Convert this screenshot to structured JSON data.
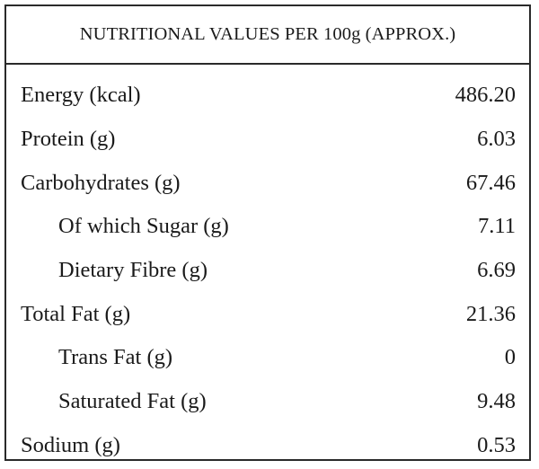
{
  "table": {
    "title": "NUTRITIONAL VALUES PER 100g (APPROX.)",
    "rows": [
      {
        "label": "Energy (kcal)",
        "value": "486.20",
        "sub": false
      },
      {
        "label": "Protein (g)",
        "value": "6.03",
        "sub": false
      },
      {
        "label": "Carbohydrates (g)",
        "value": "67.46",
        "sub": false
      },
      {
        "label": "Of which Sugar (g)",
        "value": "7.11",
        "sub": true
      },
      {
        "label": "Dietary Fibre (g)",
        "value": "6.69",
        "sub": true
      },
      {
        "label": "Total Fat (g)",
        "value": "21.36",
        "sub": false
      },
      {
        "label": "Trans Fat (g)",
        "value": "0",
        "sub": true
      },
      {
        "label": "Saturated Fat (g)",
        "value": "9.48",
        "sub": true
      },
      {
        "label": "Sodium (g)",
        "value": "0.53",
        "sub": false
      }
    ]
  }
}
